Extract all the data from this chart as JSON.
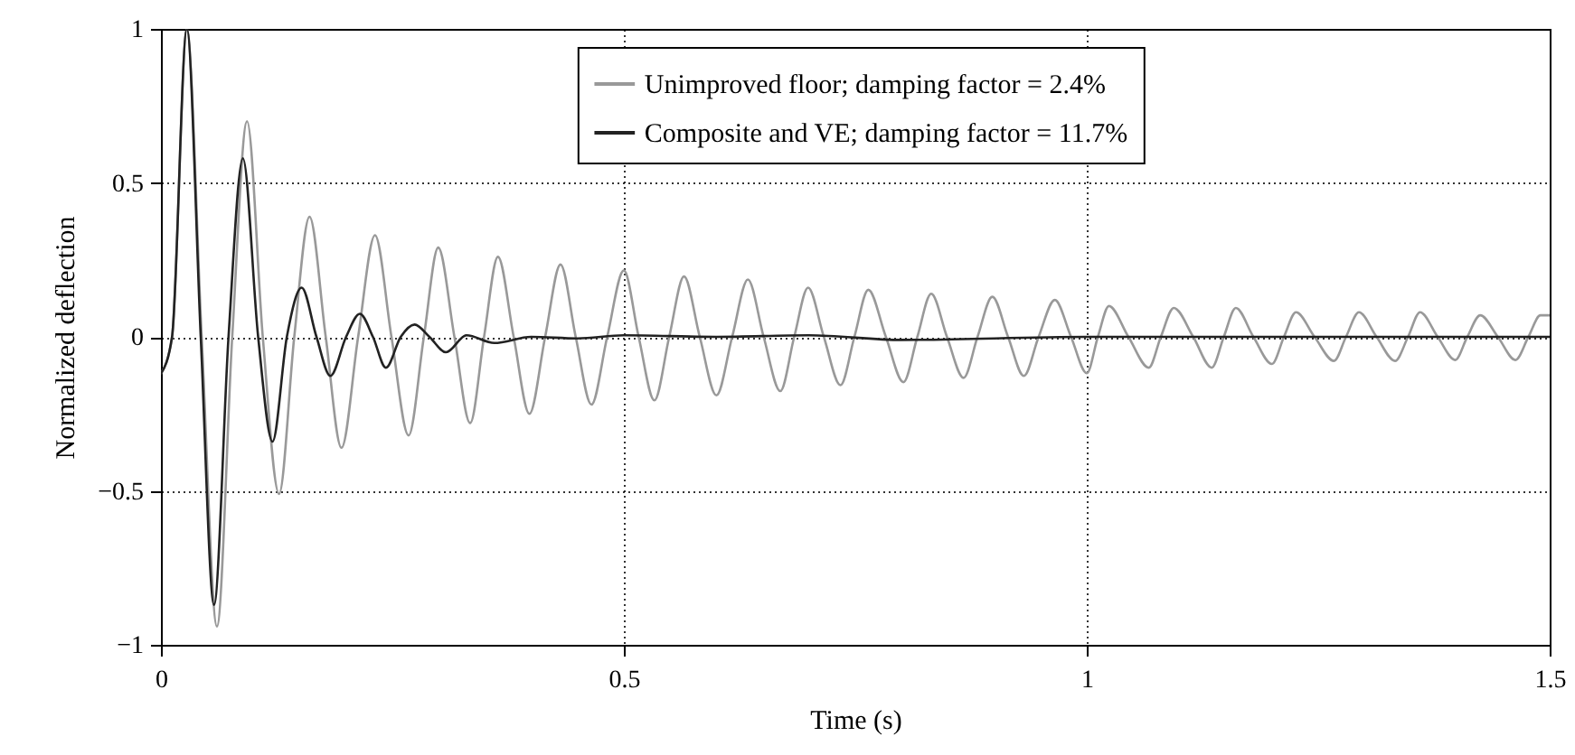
{
  "chart_data": {
    "type": "line",
    "xlabel": "Time (s)",
    "ylabel": "Normalized deflection",
    "xlim": [
      0,
      1.5
    ],
    "xticks": [
      0,
      0.5,
      1,
      1.5
    ],
    "ylim": [
      -1,
      1
    ],
    "yticks": [
      {
        "value": -1,
        "label": "−1"
      },
      {
        "value": -0.5,
        "label": "−0.5"
      },
      0,
      0.5,
      1
    ],
    "grid": true,
    "legend": "top",
    "line_style": "solid",
    "series": [
      {
        "name": "Unimproved floor; damping factor = 2.4%",
        "color": "#999999",
        "x": [
          0,
          0.012,
          0.028,
          0.044,
          0.0605,
          0.077,
          0.093,
          0.11,
          0.1276,
          0.144,
          0.1605,
          0.178,
          0.195,
          0.213,
          0.2312,
          0.249,
          0.2675,
          0.284,
          0.2995,
          0.317,
          0.334,
          0.349,
          0.364,
          0.381,
          0.398,
          0.415,
          0.4316,
          0.448,
          0.465,
          0.482,
          0.5,
          0.516,
          0.533,
          0.549,
          0.565,
          0.582,
          0.6,
          0.617,
          0.634,
          0.651,
          0.669,
          0.684,
          0.699,
          0.716,
          0.734,
          0.749,
          0.764,
          0.783,
          0.802,
          0.817,
          0.832,
          0.849,
          0.867,
          0.882,
          0.898,
          0.915,
          0.932,
          0.948,
          0.9655,
          0.983,
          1.0,
          1.012,
          1.024,
          1.045,
          1.067,
          1.08,
          1.094,
          1.115,
          1.135,
          1.148,
          1.161,
          1.18,
          1.2,
          1.213,
          1.226,
          1.246,
          1.267,
          1.28,
          1.294,
          1.313,
          1.333,
          1.347,
          1.36,
          1.379,
          1.398,
          1.411,
          1.425,
          1.444,
          1.463,
          1.477,
          1.49,
          1.5
        ],
        "values": [
          -0.12,
          0,
          1.0,
          0,
          -0.94,
          0,
          0.7,
          0,
          -0.51,
          0,
          0.39,
          0,
          -0.36,
          0,
          0.33,
          0,
          -0.32,
          0,
          0.29,
          0,
          -0.28,
          0,
          0.26,
          0,
          -0.25,
          0,
          0.235,
          0,
          -0.22,
          0,
          0.216,
          0,
          -0.206,
          0,
          0.196,
          0,
          -0.19,
          0,
          0.186,
          0,
          -0.176,
          0,
          0.16,
          0,
          -0.157,
          0,
          0.153,
          0,
          -0.147,
          0,
          0.14,
          0,
          -0.133,
          0,
          0.13,
          0,
          -0.127,
          0,
          0.12,
          0,
          -0.118,
          0,
          0.1,
          0,
          -0.1,
          0,
          0.094,
          0,
          -0.1,
          0,
          0.094,
          0,
          -0.088,
          0,
          0.08,
          0,
          -0.078,
          0,
          0.08,
          0,
          -0.078,
          0,
          0.08,
          0,
          -0.075,
          0,
          0.07,
          0,
          -0.075,
          0,
          0.07,
          0.07
        ]
      },
      {
        "name": "Composite and VE; damping factor = 11.7%",
        "color": "#222222",
        "x": [
          0,
          0.012,
          0.028,
          0.043,
          0.0573,
          0.073,
          0.0885,
          0.105,
          0.1205,
          0.136,
          0.152,
          0.168,
          0.183,
          0.2,
          0.2148,
          0.229,
          0.243,
          0.259,
          0.274,
          0.29,
          0.308,
          0.33,
          0.36,
          0.4,
          0.45,
          0.5,
          0.6,
          0.7,
          0.8,
          1.0,
          1.2,
          1.5
        ],
        "values": [
          -0.12,
          0,
          1.0,
          0,
          -0.87,
          0,
          0.58,
          0,
          -0.34,
          0,
          0.16,
          0,
          -0.127,
          0,
          0.075,
          0,
          -0.1,
          0,
          0.04,
          0,
          -0.05,
          0.005,
          -0.02,
          0,
          -0.005,
          0.005,
          0,
          0.005,
          -0.01,
          0,
          0,
          0
        ]
      }
    ]
  }
}
